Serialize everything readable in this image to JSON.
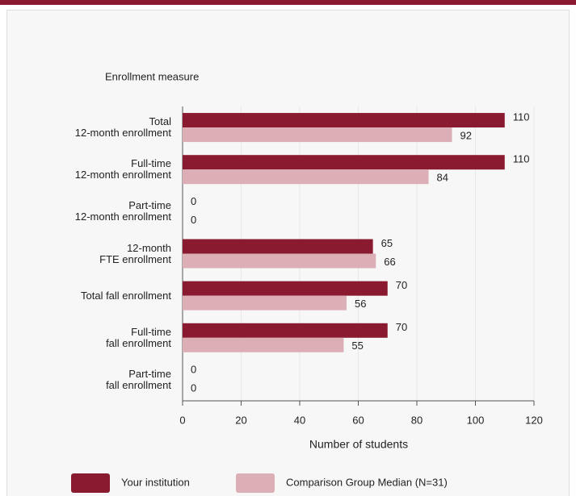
{
  "chart_data": {
    "type": "bar",
    "orientation": "horizontal",
    "y_axis_title": "Enrollment measure",
    "x_axis_title": "Number of students",
    "categories": [
      "Total\n12-month enrollment",
      "Full-time\n12-month enrollment",
      "Part-time\n12-month enrollment",
      "12-month\nFTE enrollment",
      "Total fall enrollment",
      "Full-time\nfall enrollment",
      "Part-time\nfall enrollment"
    ],
    "series": [
      {
        "name": "Your institution",
        "color": "#8a1a2f",
        "values": [
          110,
          110,
          0,
          65,
          70,
          70,
          0
        ]
      },
      {
        "name": "Comparison Group Median (N=31)",
        "color": "#dcafb7",
        "values": [
          92,
          84,
          0,
          66,
          56,
          55,
          0
        ]
      }
    ],
    "xlim": [
      0,
      120
    ],
    "xticks": [
      0,
      20,
      40,
      60,
      80,
      100,
      120
    ],
    "grid": true
  }
}
